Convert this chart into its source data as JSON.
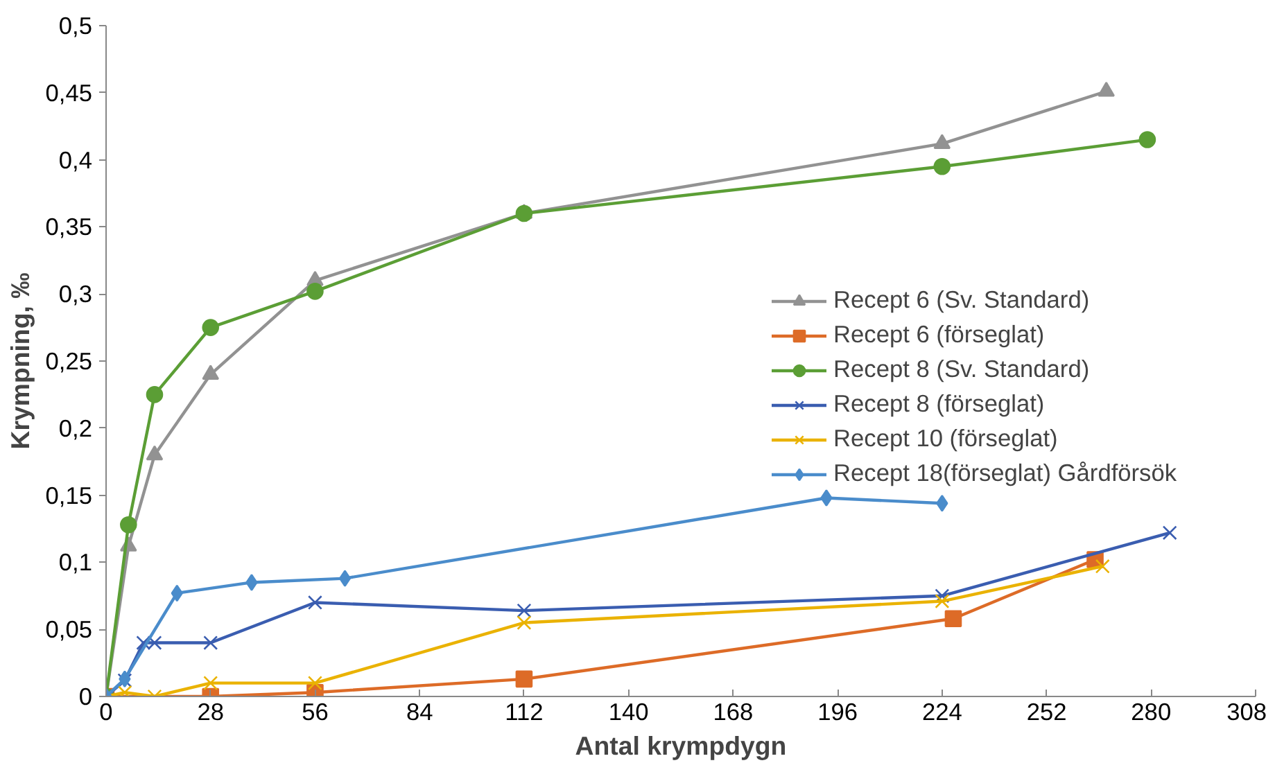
{
  "chart_data": {
    "type": "line",
    "xlabel": "Antal krympdygn",
    "ylabel": "Krympning, ‰",
    "xlim": [
      0,
      308
    ],
    "ylim": [
      0,
      0.5
    ],
    "xticks": [
      0,
      28,
      56,
      84,
      112,
      140,
      168,
      196,
      224,
      252,
      280,
      308
    ],
    "yticks": [
      {
        "value": 0,
        "label": "0"
      },
      {
        "value": 0.05,
        "label": "0,05"
      },
      {
        "value": 0.1,
        "label": "0,1"
      },
      {
        "value": 0.15,
        "label": "0,15"
      },
      {
        "value": 0.2,
        "label": "0,2"
      },
      {
        "value": 0.25,
        "label": "0,25"
      },
      {
        "value": 0.3,
        "label": "0,3"
      },
      {
        "value": 0.35,
        "label": "0,35"
      },
      {
        "value": 0.4,
        "label": "0,4"
      },
      {
        "value": 0.45,
        "label": "0,45"
      },
      {
        "value": 0.5,
        "label": "0,5"
      }
    ],
    "grid": false,
    "legend": "right",
    "line_style": "solid",
    "series": [
      {
        "name": "Recept 6 (Sv. Standard)",
        "color": "#929292",
        "marker": "triangle",
        "x": [
          0,
          6,
          13,
          28,
          56,
          112,
          224,
          268
        ],
        "values": [
          0,
          0.112,
          0.18,
          0.24,
          0.31,
          0.36,
          0.412,
          0.451
        ]
      },
      {
        "name": "Recept 6 (förseglat)",
        "color": "#dd6b27",
        "marker": "square",
        "x": [
          0,
          28,
          56,
          112,
          227,
          265
        ],
        "values": [
          0,
          0,
          0.003,
          0.013,
          0.058,
          0.102
        ]
      },
      {
        "name": "Recept 8 (Sv. Standard)",
        "color": "#5b9e35",
        "marker": "circle",
        "x": [
          0,
          6,
          13,
          28,
          56,
          112,
          224,
          279
        ],
        "values": [
          0,
          0.128,
          0.225,
          0.275,
          0.302,
          0.36,
          0.395,
          0.415
        ]
      },
      {
        "name": "Recept 8 (förseglat)",
        "color": "#3a5db0",
        "marker": "cross",
        "x": [
          0,
          5,
          10,
          13,
          28,
          56,
          112,
          224,
          285
        ],
        "values": [
          0,
          0.012,
          0.04,
          0.04,
          0.04,
          0.07,
          0.064,
          0.075,
          0.122
        ]
      },
      {
        "name": "Recept 10 (förseglat)",
        "color": "#eab200",
        "marker": "cross",
        "x": [
          0,
          5,
          13,
          28,
          56,
          112,
          224,
          267
        ],
        "values": [
          0,
          0.003,
          0,
          0.01,
          0.01,
          0.055,
          0.071,
          0.097
        ]
      },
      {
        "name": "Recept 18(förseglat) Gårdförsök",
        "color": "#4a8ccb",
        "marker": "diamond",
        "x": [
          0,
          5,
          19,
          39,
          64,
          193,
          224
        ],
        "values": [
          0,
          0.013,
          0.077,
          0.085,
          0.088,
          0.148,
          0.144
        ]
      }
    ]
  }
}
